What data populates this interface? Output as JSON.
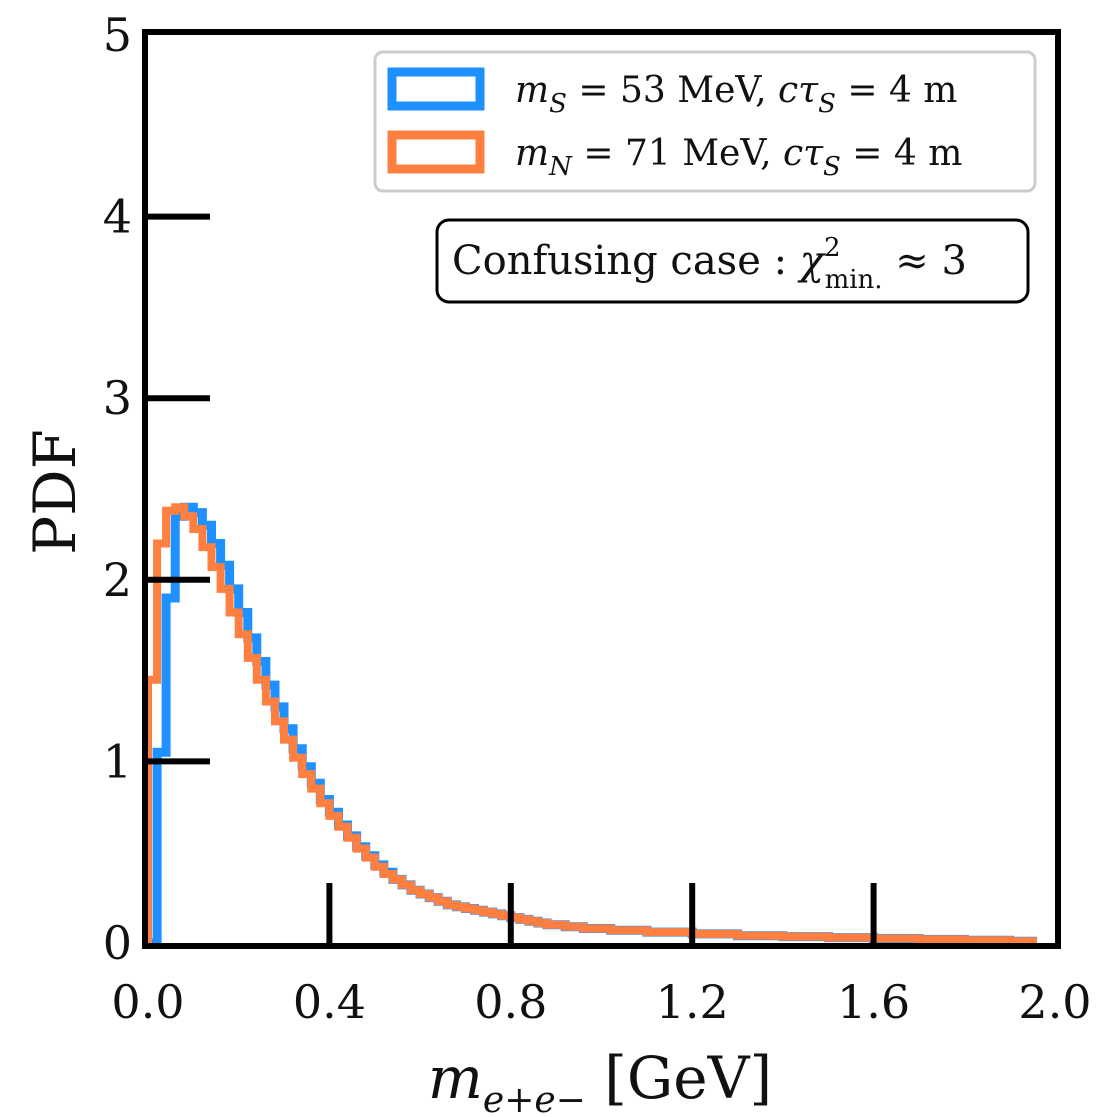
{
  "chart_data": {
    "type": "line",
    "xlabel": "m_{e+e-} [GeV]",
    "ylabel": "PDF",
    "xlim": [
      0.0,
      2.0
    ],
    "ylim": [
      0,
      5
    ],
    "xticks": [
      "0.0",
      "0.4",
      "0.8",
      "1.2",
      "1.6",
      "2.0"
    ],
    "yticks": [
      "0",
      "1",
      "2",
      "3",
      "4",
      "5"
    ],
    "xtick_values": [
      0.0,
      0.4,
      0.8,
      1.2,
      1.6,
      2.0
    ],
    "ytick_values": [
      0,
      1,
      2,
      3,
      4,
      5
    ],
    "grid": false,
    "legend_position": "top-right",
    "annotation": "Confusing case : χ²min. ≈ 3",
    "series": [
      {
        "name": "m_S = 53 MeV, cτ_S = 4 m",
        "color": "#1e90ff",
        "style": "step",
        "x": [
          0.01,
          0.03,
          0.05,
          0.07,
          0.09,
          0.11,
          0.13,
          0.15,
          0.17,
          0.19,
          0.21,
          0.23,
          0.25,
          0.27,
          0.29,
          0.31,
          0.33,
          0.35,
          0.37,
          0.39,
          0.41,
          0.43,
          0.45,
          0.47,
          0.49,
          0.51,
          0.53,
          0.55,
          0.57,
          0.59,
          0.61,
          0.63,
          0.65,
          0.67,
          0.69,
          0.71,
          0.73,
          0.75,
          0.77,
          0.79,
          0.81,
          0.83,
          0.85,
          0.87,
          0.89,
          0.91,
          0.93,
          0.95,
          0.97,
          0.99,
          1.05,
          1.15,
          1.25,
          1.35,
          1.45,
          1.55,
          1.65,
          1.75,
          1.85,
          1.95
        ],
        "values": [
          0.0,
          1.05,
          1.9,
          2.35,
          2.4,
          2.37,
          2.3,
          2.2,
          2.08,
          1.95,
          1.82,
          1.68,
          1.55,
          1.42,
          1.3,
          1.18,
          1.07,
          0.97,
          0.88,
          0.79,
          0.72,
          0.65,
          0.59,
          0.53,
          0.48,
          0.43,
          0.39,
          0.35,
          0.32,
          0.29,
          0.27,
          0.25,
          0.23,
          0.21,
          0.2,
          0.19,
          0.18,
          0.17,
          0.16,
          0.15,
          0.14,
          0.13,
          0.12,
          0.11,
          0.1,
          0.1,
          0.09,
          0.09,
          0.08,
          0.08,
          0.07,
          0.06,
          0.05,
          0.04,
          0.035,
          0.03,
          0.025,
          0.02,
          0.015,
          0.01
        ]
      },
      {
        "name": "m_N = 71 MeV, cτ_S = 4 m",
        "color": "#ff7f41",
        "style": "step",
        "x": [
          0.01,
          0.03,
          0.05,
          0.07,
          0.09,
          0.11,
          0.13,
          0.15,
          0.17,
          0.19,
          0.21,
          0.23,
          0.25,
          0.27,
          0.29,
          0.31,
          0.33,
          0.35,
          0.37,
          0.39,
          0.41,
          0.43,
          0.45,
          0.47,
          0.49,
          0.51,
          0.53,
          0.55,
          0.57,
          0.59,
          0.61,
          0.63,
          0.65,
          0.67,
          0.69,
          0.71,
          0.73,
          0.75,
          0.77,
          0.79,
          0.81,
          0.83,
          0.85,
          0.87,
          0.89,
          0.91,
          0.93,
          0.95,
          0.97,
          0.99,
          1.05,
          1.15,
          1.25,
          1.35,
          1.45,
          1.55,
          1.65,
          1.75,
          1.85,
          1.95
        ],
        "values": [
          1.45,
          2.2,
          2.38,
          2.4,
          2.35,
          2.28,
          2.18,
          2.07,
          1.95,
          1.82,
          1.7,
          1.57,
          1.45,
          1.33,
          1.22,
          1.12,
          1.02,
          0.93,
          0.85,
          0.77,
          0.7,
          0.64,
          0.58,
          0.52,
          0.47,
          0.42,
          0.38,
          0.35,
          0.32,
          0.29,
          0.27,
          0.25,
          0.23,
          0.21,
          0.2,
          0.19,
          0.18,
          0.17,
          0.16,
          0.15,
          0.14,
          0.13,
          0.12,
          0.11,
          0.1,
          0.1,
          0.09,
          0.09,
          0.08,
          0.08,
          0.07,
          0.06,
          0.05,
          0.04,
          0.035,
          0.03,
          0.025,
          0.02,
          0.015,
          0.01
        ]
      }
    ]
  },
  "legend": {
    "entries": [
      {
        "var": "m",
        "sub": "S",
        "rest": " = 53 MeV,  ",
        "var2": "cτ",
        "sub2": "S",
        "rest2": " = 4 m"
      },
      {
        "var": "m",
        "sub": "N",
        "rest": " = 71 MeV,  ",
        "var2": "cτ",
        "sub2": "S",
        "rest2": " = 4 m"
      }
    ]
  },
  "annotation": {
    "prefix": "Confusing case : ",
    "chi": "χ",
    "sup": "2",
    "sub": "min.",
    "suffix": " ≈ 3"
  },
  "axis_label_x": {
    "var": "m",
    "sub": "e+e−",
    "unit": " [GeV]"
  },
  "axis_label_y": "PDF"
}
